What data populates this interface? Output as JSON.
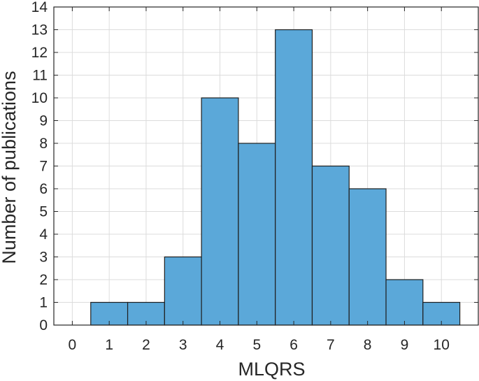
{
  "chart_data": {
    "type": "bar",
    "categories": [
      "1",
      "2",
      "3",
      "4",
      "5",
      "6",
      "7",
      "8",
      "9",
      "10"
    ],
    "x": [
      1,
      2,
      3,
      4,
      5,
      6,
      7,
      8,
      9,
      10
    ],
    "values": [
      1,
      1,
      3,
      10,
      8,
      13,
      7,
      6,
      2,
      1
    ],
    "bin_width": 1,
    "title": "",
    "xlabel": "MLQRS",
    "ylabel": "Number of publications",
    "xlim": [
      -0.5,
      11
    ],
    "ylim": [
      0,
      14
    ],
    "xticks": [
      0,
      1,
      2,
      3,
      4,
      5,
      6,
      7,
      8,
      9,
      10
    ],
    "yticks": [
      0,
      1,
      2,
      3,
      4,
      5,
      6,
      7,
      8,
      9,
      10,
      11,
      12,
      13,
      14
    ],
    "grid": true,
    "legend": "none",
    "bar_color": "#5ba8d9",
    "edge_color": "#1f1f1f"
  }
}
